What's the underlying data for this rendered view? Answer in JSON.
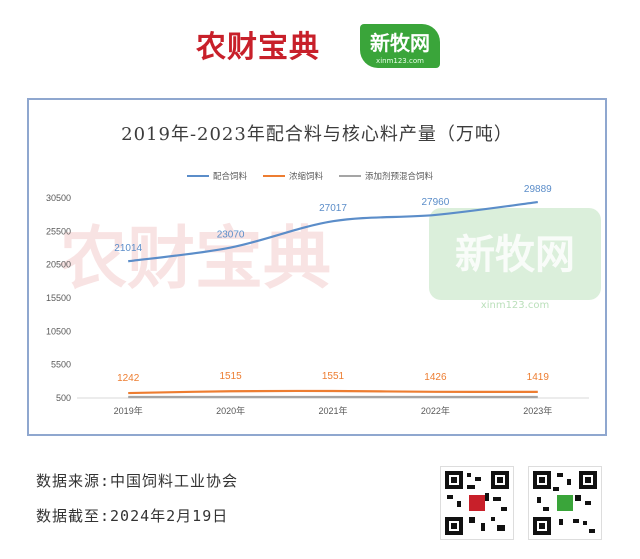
{
  "header": {
    "brand_left": "农财宝典",
    "brand_right": "新牧网",
    "brand_right_sub": "xinm123.com"
  },
  "colors": {
    "series1": "#5b8dc9",
    "series2": "#ed7d31",
    "series3": "#a5a5a5",
    "frame": "#8fa7cf"
  },
  "chart_data": {
    "type": "line",
    "title": "2019年-2023年配合料与核心料产量（万吨）",
    "categories": [
      "2019年",
      "2020年",
      "2021年",
      "2022年",
      "2023年"
    ],
    "series": [
      {
        "name": "配合饲料",
        "values": [
          21014,
          23070,
          27017,
          27960,
          29889
        ],
        "labels": [
          "21014",
          "23070",
          "27017",
          "27960",
          "29889"
        ]
      },
      {
        "name": "浓缩饲料",
        "values": [
          1242,
          1515,
          1551,
          1426,
          1419
        ],
        "labels": [
          "1242",
          "1515",
          "1551",
          "1426",
          "1419"
        ]
      },
      {
        "name": "添加剂预混合饲料",
        "values": [
          650,
          650,
          650,
          650,
          650
        ]
      }
    ],
    "yticks": [
      "30500",
      "25500",
      "20500",
      "15500",
      "10500",
      "5500",
      "500"
    ],
    "ylim": [
      500,
      30500
    ],
    "legend": "top",
    "grid": false
  },
  "footer": {
    "source": "数据来源:中国饲料工业协会",
    "date": "数据截至:2024年2月19日"
  },
  "watermark": {
    "left": "农财宝典",
    "right": "新牧网",
    "right_sub": "xinm123.com"
  }
}
